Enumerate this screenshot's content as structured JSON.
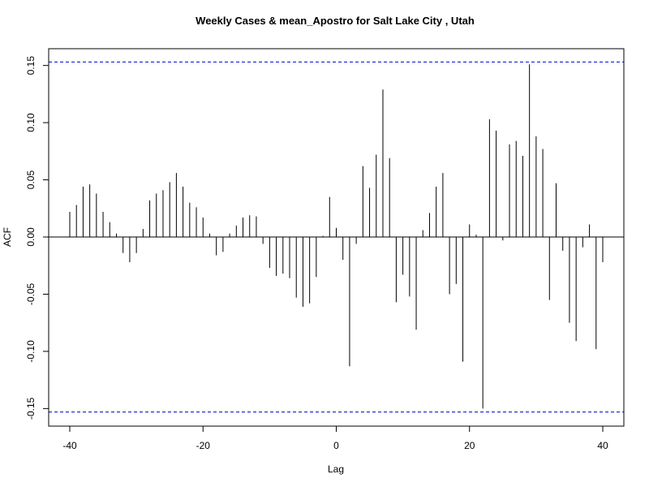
{
  "chart_data": {
    "type": "bar",
    "title": "Weekly Cases & mean_Apostro for Salt Lake City , Utah",
    "xlabel": "Lag",
    "ylabel": "ACF",
    "xlim": [
      -42,
      43
    ],
    "ylim": [
      -0.165,
      0.165
    ],
    "xticks": [
      -40,
      -20,
      0,
      20,
      40
    ],
    "xtick_labels": [
      "-40",
      "-20",
      "0",
      "20",
      "40"
    ],
    "yticks": [
      -0.15,
      -0.1,
      -0.05,
      0.0,
      0.05,
      0.1,
      0.15
    ],
    "ytick_labels": [
      "-0.15",
      "-0.10",
      "-0.05",
      "0.00",
      "0.05",
      "0.10",
      "0.15"
    ],
    "confidence_limit": 0.153,
    "grid": false,
    "colors": {
      "bars": "#000000",
      "confidence": "#0000cc",
      "zero_line": "#000000"
    },
    "series": [
      {
        "lags": [
          -40,
          -39,
          -38,
          -37,
          -36,
          -35,
          -34,
          -33,
          -32,
          -31,
          -30,
          -29,
          -28,
          -27,
          -26,
          -25,
          -24,
          -23,
          -22,
          -21,
          -20,
          -19,
          -18,
          -17,
          -16,
          -15,
          -14,
          -13,
          -12,
          -11,
          -10,
          -9,
          -8,
          -7,
          -6,
          -5,
          -4,
          -3,
          -2,
          -1,
          0,
          1,
          2,
          3,
          4,
          5,
          6,
          7,
          8,
          9,
          10,
          11,
          12,
          13,
          14,
          15,
          16,
          17,
          18,
          19,
          20,
          21,
          22,
          23,
          24,
          25,
          26,
          27,
          28,
          29,
          30,
          31,
          32,
          33,
          34,
          35,
          36,
          37,
          38,
          39,
          40
        ],
        "values": [
          0.022,
          0.028,
          0.044,
          0.046,
          0.038,
          0.022,
          0.013,
          0.003,
          -0.014,
          -0.022,
          -0.014,
          0.007,
          0.032,
          0.038,
          0.041,
          0.048,
          0.056,
          0.044,
          0.03,
          0.026,
          0.017,
          0.003,
          -0.016,
          -0.013,
          0.003,
          0.01,
          0.017,
          0.019,
          0.018,
          -0.006,
          -0.027,
          -0.034,
          -0.032,
          -0.036,
          -0.053,
          -0.061,
          -0.058,
          -0.035,
          0.001,
          0.035,
          0.008,
          -0.02,
          -0.113,
          -0.006,
          0.062,
          0.043,
          0.072,
          0.129,
          0.069,
          -0.057,
          -0.033,
          -0.052,
          -0.081,
          0.006,
          0.021,
          0.044,
          0.056,
          -0.05,
          -0.041,
          -0.109,
          0.011,
          0.002,
          -0.15,
          0.103,
          0.093,
          -0.003,
          0.081,
          0.084,
          0.071,
          0.151,
          0.088,
          0.077,
          -0.055,
          0.047,
          -0.012,
          -0.075,
          -0.091,
          -0.009,
          0.011,
          -0.098,
          -0.022
        ]
      }
    ]
  }
}
